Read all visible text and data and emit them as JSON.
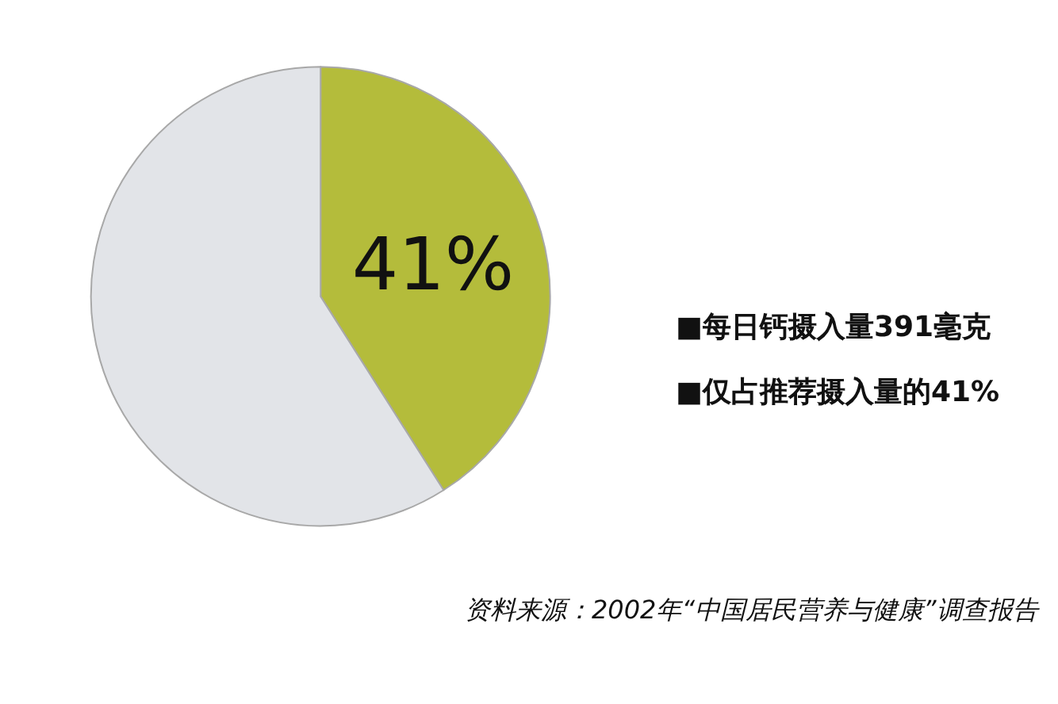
{
  "chart_data": {
    "type": "pie",
    "categories": [
      null,
      null
    ],
    "values": [
      41,
      59
    ],
    "colors": [
      "#b4bc3b",
      "#e2e4e8"
    ],
    "value_labels": [
      "41%",
      null
    ],
    "annotations": [
      "■每日钙摄入量391毫克",
      "■仅占推荐摄入量的41%",
      "资料来源：2002年“中国居民营养与健康”调查报告"
    ]
  }
}
